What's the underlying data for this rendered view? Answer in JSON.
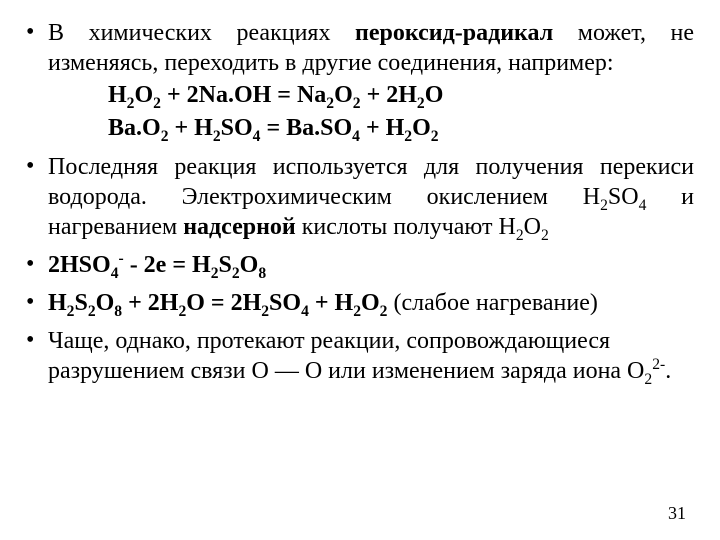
{
  "colors": {
    "text": "#000000",
    "background": "#ffffff"
  },
  "typography": {
    "font_family": "Times New Roman",
    "base_size_pt": 24
  },
  "page_number": "31",
  "b1": {
    "t1": "В химических реакциях ",
    "bold": "пероксид-радикал",
    "t2": " может, не изменяясь, переходить в другие соединения, например:"
  },
  "eq1": {
    "a": "H",
    "b": "O",
    "c": "  +  2Na.OH  =  Na",
    "d": "O",
    "e": "  + 2H",
    "f": "O"
  },
  "eq2": {
    "a": "Ba.O",
    "b": "  + H",
    "c": "SO",
    "d": "  =  Ba.SO",
    "e": "  + H",
    "f": "O"
  },
  "b2": {
    "t1": "Последняя реакция используется для получения перекиси водорода. Электрохимическим окислением H",
    "t2": "SO",
    "t3": " и нагреванием ",
    "bold": "надсерной",
    "t4": " кислоты получают H",
    "t5": "O"
  },
  "b3": {
    "a": " 2HSO",
    "b": "  -  2e  =  H",
    "c": "S",
    "d": "O"
  },
  "b4": {
    "a": "H",
    "b": "S",
    "c": "O",
    "d": " + 2H",
    "e": "O = 2H",
    "f": "SO",
    "g": " + H",
    "h": "O",
    "i": " (слабое нагревание)"
  },
  "b5": {
    "t1": "Чаще, однако, протекают реакции, сопровождающиеся разрушением связи О — О или изменением заряда иона O",
    "t2": "."
  }
}
